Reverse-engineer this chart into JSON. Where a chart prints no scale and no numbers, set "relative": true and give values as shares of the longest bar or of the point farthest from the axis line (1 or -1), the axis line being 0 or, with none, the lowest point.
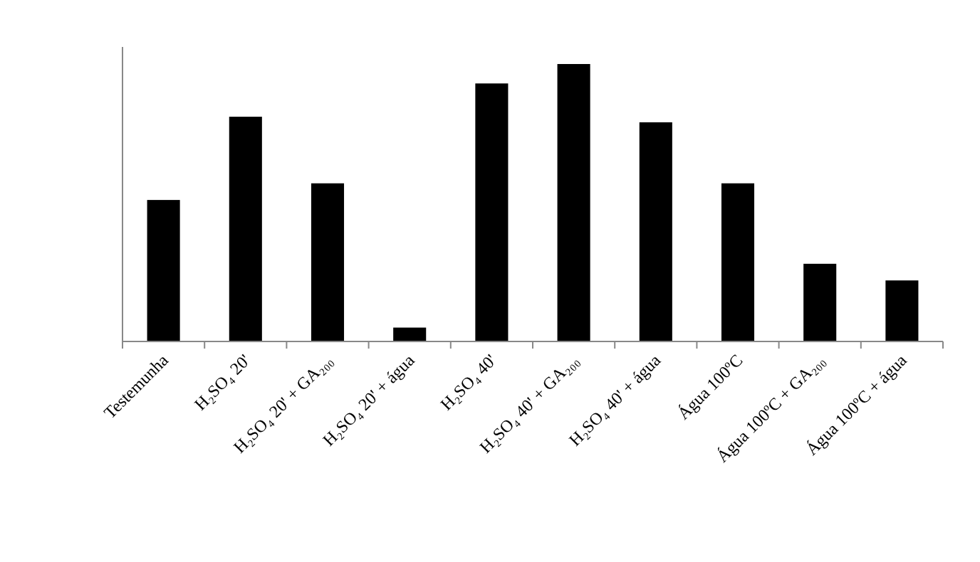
{
  "chart_data": {
    "type": "bar",
    "relative": true,
    "color": "#000000",
    "categories": [
      "Testemunha",
      "H₂SO₄ 20'",
      "H₂SO₄ 20' + GA₂₀₀",
      "H₂SO₄ 20' + água",
      "H₂SO₄ 40'",
      "H₂SO₄ 40' + GA₂₀₀",
      "H₂SO₄ 40' + água",
      "Água 100ºC",
      "Água 100ºC + GA₂₀₀",
      "Água 100ºC + água"
    ],
    "values": [
      0.51,
      0.81,
      0.57,
      0.05,
      0.93,
      1,
      0.79,
      0.57,
      0.28,
      0.22
    ]
  }
}
